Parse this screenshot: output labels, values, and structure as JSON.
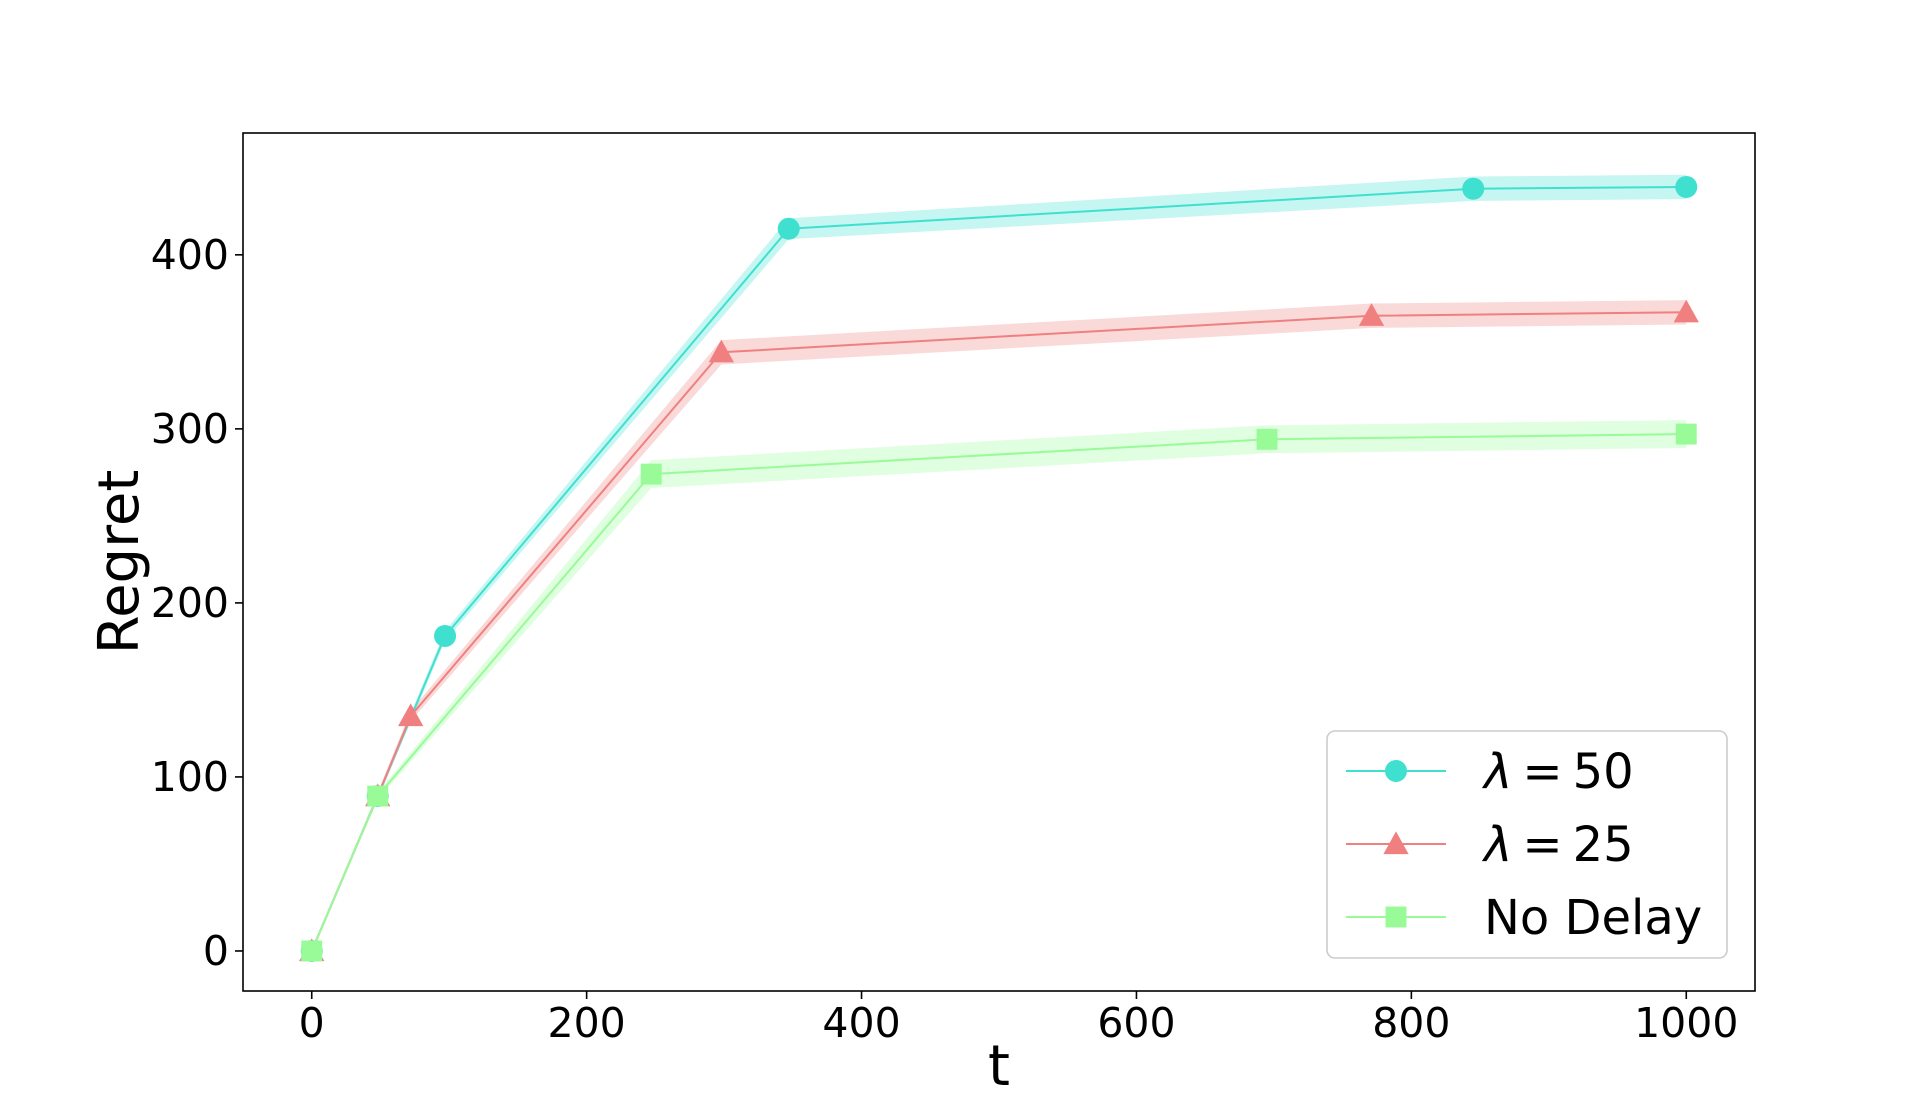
{
  "chart_data": {
    "type": "line",
    "title": "",
    "xlabel": "t",
    "ylabel": "Regret",
    "xlim": [
      -50,
      1050
    ],
    "ylim": [
      -23,
      470
    ],
    "xticks": [
      0,
      200,
      400,
      600,
      800,
      1000
    ],
    "xtick_labels": [
      "0",
      "200",
      "400",
      "600",
      "800",
      "1000"
    ],
    "yticks": [
      0,
      100,
      200,
      300,
      400
    ],
    "ytick_labels": [
      "0",
      "100",
      "200",
      "300",
      "400"
    ],
    "grid": false,
    "legend_position": "bottom-right",
    "series": [
      {
        "name": "λ = 50",
        "legend_parts": [
          "λ",
          "=",
          "50"
        ],
        "color": "#40E0D0",
        "marker": "circle",
        "x": [
          0,
          48,
          97,
          347,
          845,
          1000
        ],
        "y": [
          0,
          89,
          181,
          415,
          438,
          439
        ],
        "band": [
          0,
          2,
          3,
          6,
          7,
          7
        ]
      },
      {
        "name": "λ = 25",
        "legend_parts": [
          "λ",
          "=",
          "25"
        ],
        "color": "#F08080",
        "marker": "triangle",
        "x": [
          0,
          48,
          72,
          298,
          771,
          1000
        ],
        "y": [
          0,
          89,
          135,
          344,
          365,
          367
        ],
        "band": [
          0,
          2,
          3,
          7,
          7,
          7
        ]
      },
      {
        "name": "No Delay",
        "legend_parts": [
          "No Delay"
        ],
        "color": "#98FB98",
        "marker": "square",
        "x": [
          0,
          48,
          247,
          695,
          1000
        ],
        "y": [
          0,
          89,
          274,
          294,
          297
        ],
        "band": [
          0,
          2,
          8,
          8,
          8
        ]
      }
    ]
  }
}
